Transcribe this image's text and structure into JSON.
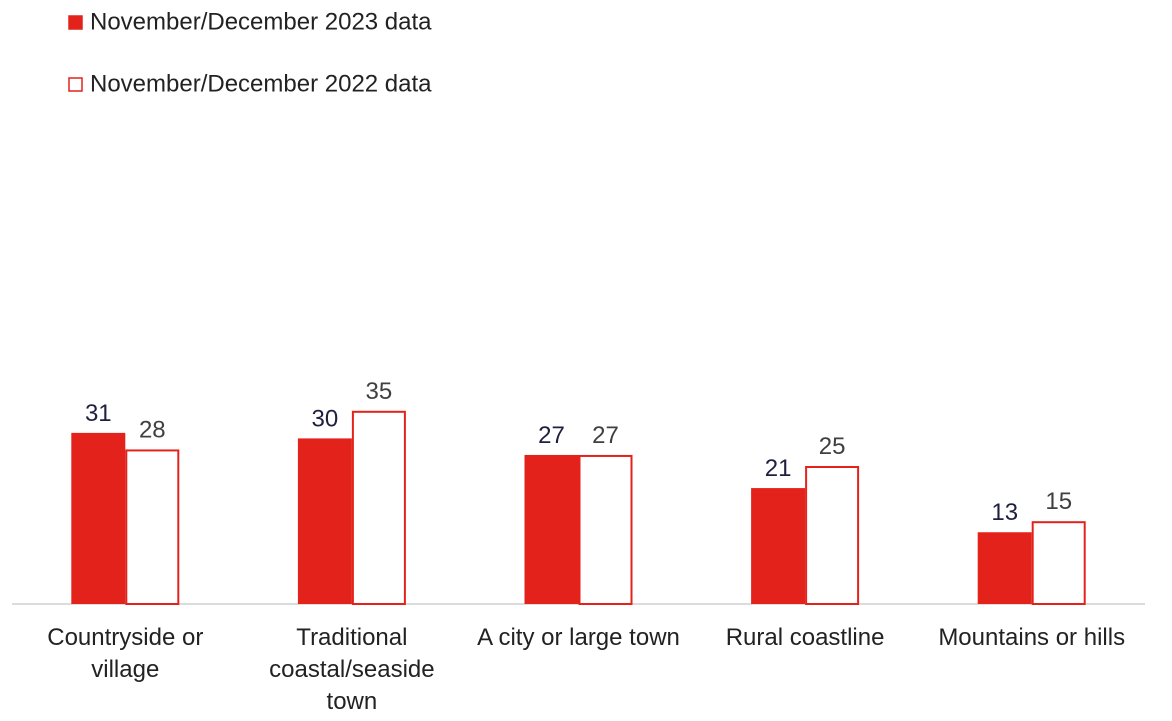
{
  "chart_data": {
    "type": "bar",
    "categories": [
      "Countryside or village",
      "Traditional coastal/seaside town",
      "A city or large town",
      "Rural coastline",
      "Mountains or hills"
    ],
    "series": [
      {
        "name": "November/December 2023 data",
        "color": "#e3231b",
        "label_color": "#1f2040",
        "filled": true,
        "values": [
          31,
          30,
          27,
          21,
          13
        ]
      },
      {
        "name": "November/December 2022 data",
        "color": "#e3231b",
        "label_color": "#404040",
        "filled": false,
        "values": [
          28,
          35,
          27,
          25,
          15
        ]
      }
    ],
    "legend": "top-left"
  }
}
